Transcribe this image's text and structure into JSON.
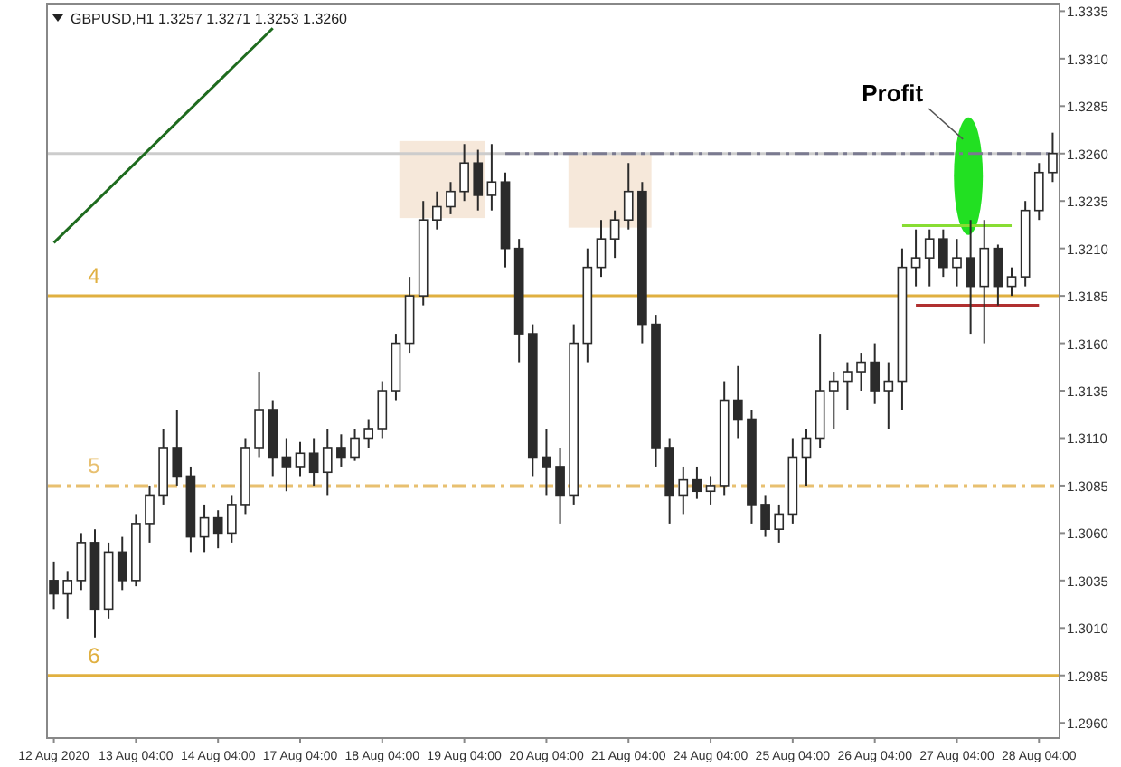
{
  "chart_data": {
    "type": "candlestick",
    "title": "GBPUSD,H1  1.3257 1.3271 1.3253 1.3260",
    "categories": [
      "12 Aug 2020",
      null,
      null,
      null,
      null,
      null,
      "13 Aug 04:00",
      null,
      null,
      null,
      null,
      null,
      "14 Aug 04:00",
      null,
      null,
      null,
      null,
      null,
      "17 Aug 04:00",
      null,
      null,
      null,
      null,
      null,
      "18 Aug 04:00",
      null,
      null,
      null,
      null,
      null,
      "19 Aug 04:00",
      null,
      null,
      null,
      null,
      null,
      "20 Aug 04:00",
      null,
      null,
      null,
      null,
      null,
      "21 Aug 04:00",
      null,
      null,
      null,
      null,
      null,
      "24 Aug 04:00",
      null,
      null,
      null,
      null,
      null,
      "25 Aug 04:00",
      null,
      null,
      null,
      null,
      null,
      "26 Aug 04:00",
      null,
      null,
      null,
      null,
      null,
      "27 Aug 04:00",
      null,
      null,
      null,
      null,
      null,
      "28 Aug 04:00",
      null
    ],
    "ylim": [
      1.2952,
      1.3339
    ],
    "yticks": [
      1.3335,
      {
        "value": 1.331,
        "label": "1.3310"
      },
      1.3285,
      {
        "value": 1.326,
        "label": "1.3260"
      },
      1.3235,
      {
        "value": 1.321,
        "label": "1.3210"
      },
      1.3185,
      {
        "value": 1.316,
        "label": "1.3160"
      },
      1.3135,
      {
        "value": 1.311,
        "label": "1.3110"
      },
      1.3085,
      {
        "value": 1.306,
        "label": "1.3060"
      },
      1.3035,
      {
        "value": 1.301,
        "label": "1.3010"
      },
      1.2985,
      {
        "value": 1.296,
        "label": "1.2960"
      }
    ],
    "grid": false,
    "annotations": [
      "Profit",
      "4",
      "5",
      "6"
    ],
    "ref_lines": [
      {
        "axis": "y",
        "value": 1.326,
        "color": "#cccccc"
      },
      {
        "axis": "y",
        "value": 1.3185,
        "color": "#e0b040"
      },
      {
        "axis": "y",
        "value": 1.3085,
        "color": "#e8c070",
        "line_style": "dashed"
      },
      {
        "axis": "y",
        "value": 1.2985,
        "color": "#e0b040"
      }
    ],
    "series": [
      {
        "type": "line",
        "color": "#1e6b1e",
        "values": [
          1.3213,
          null,
          null,
          null,
          null,
          null,
          null,
          null,
          null,
          null,
          null,
          null,
          null,
          null,
          null,
          null,
          1.3326,
          null,
          null,
          null,
          null,
          null,
          null,
          null,
          null,
          null,
          null,
          null,
          null,
          null,
          null,
          null,
          null,
          null,
          null,
          null,
          null,
          null,
          null,
          null,
          null,
          null,
          null,
          null,
          null,
          null,
          null,
          null,
          null,
          null,
          null,
          null,
          null,
          null,
          null,
          null,
          null,
          null,
          null,
          null,
          null,
          null,
          null,
          null,
          null,
          null,
          null,
          null,
          null,
          null,
          null,
          null,
          null,
          null
        ]
      },
      {
        "type": "line",
        "color": "#7a7a90",
        "line_style": "dashed",
        "values": [
          null,
          null,
          null,
          null,
          null,
          null,
          null,
          null,
          null,
          null,
          null,
          null,
          null,
          null,
          null,
          null,
          null,
          null,
          null,
          null,
          null,
          null,
          null,
          null,
          null,
          null,
          null,
          null,
          null,
          null,
          null,
          null,
          null,
          1.326,
          null,
          null,
          null,
          null,
          null,
          null,
          null,
          null,
          null,
          null,
          null,
          null,
          null,
          null,
          null,
          null,
          null,
          null,
          null,
          null,
          null,
          null,
          null,
          null,
          null,
          null,
          null,
          null,
          null,
          null,
          null,
          null,
          null,
          null,
          null,
          null,
          null,
          null,
          null,
          1.326
        ]
      },
      {
        "color": "#2b2b2b",
        "ohlc": [
          [
            1.3035,
            1.3045,
            1.302,
            1.3028
          ],
          [
            1.3028,
            1.304,
            1.3015,
            1.3035
          ],
          [
            1.3035,
            1.306,
            1.303,
            1.3055
          ],
          [
            1.3055,
            1.3062,
            1.3005,
            1.302
          ],
          [
            1.302,
            1.3055,
            1.3015,
            1.305
          ],
          [
            1.305,
            1.3058,
            1.303,
            1.3035
          ],
          [
            1.3035,
            1.307,
            1.3032,
            1.3065
          ],
          [
            1.3065,
            1.3085,
            1.3055,
            1.308
          ],
          [
            1.308,
            1.3115,
            1.3075,
            1.3105
          ],
          [
            1.3105,
            1.3125,
            1.3085,
            1.309
          ],
          [
            1.309,
            1.3095,
            1.305,
            1.3058
          ],
          [
            1.3058,
            1.3075,
            1.305,
            1.3068
          ],
          [
            1.3068,
            1.3072,
            1.3052,
            1.306
          ],
          [
            1.306,
            1.308,
            1.3055,
            1.3075
          ],
          [
            1.3075,
            1.311,
            1.307,
            1.3105
          ],
          [
            1.3105,
            1.3145,
            1.31,
            1.3125
          ],
          [
            1.3125,
            1.313,
            1.309,
            1.31
          ],
          [
            1.31,
            1.311,
            1.3082,
            1.3095
          ],
          [
            1.3095,
            1.3108,
            1.309,
            1.3102
          ],
          [
            1.3102,
            1.311,
            1.3085,
            1.3092
          ],
          [
            1.3092,
            1.3115,
            1.308,
            1.3105
          ],
          [
            1.3105,
            1.3112,
            1.3095,
            1.31
          ],
          [
            1.31,
            1.3115,
            1.3098,
            1.311
          ],
          [
            1.311,
            1.312,
            1.3105,
            1.3115
          ],
          [
            1.3115,
            1.314,
            1.311,
            1.3135
          ],
          [
            1.3135,
            1.3165,
            1.313,
            1.316
          ],
          [
            1.316,
            1.3195,
            1.3155,
            1.3185
          ],
          [
            1.3185,
            1.3235,
            1.318,
            1.3225
          ],
          [
            1.3225,
            1.324,
            1.322,
            1.3232
          ],
          [
            1.3232,
            1.3245,
            1.3228,
            1.324
          ],
          [
            1.324,
            1.3265,
            1.3235,
            1.3255
          ],
          [
            1.3255,
            1.3262,
            1.323,
            1.3238
          ],
          [
            1.3238,
            1.3265,
            1.323,
            1.3245
          ],
          [
            1.3245,
            1.325,
            1.32,
            1.321
          ],
          [
            1.321,
            1.3215,
            1.315,
            1.3165
          ],
          [
            1.3165,
            1.317,
            1.309,
            1.31
          ],
          [
            1.31,
            1.3115,
            1.308,
            1.3095
          ],
          [
            1.3095,
            1.3105,
            1.3065,
            1.308
          ],
          [
            1.308,
            1.317,
            1.3075,
            1.316
          ],
          [
            1.316,
            1.321,
            1.315,
            1.32
          ],
          [
            1.32,
            1.3225,
            1.3195,
            1.3215
          ],
          [
            1.3215,
            1.323,
            1.3205,
            1.3225
          ],
          [
            1.3225,
            1.3255,
            1.322,
            1.324
          ],
          [
            1.324,
            1.3245,
            1.316,
            1.317
          ],
          [
            1.317,
            1.3175,
            1.3095,
            1.3105
          ],
          [
            1.3105,
            1.311,
            1.3065,
            1.308
          ],
          [
            1.308,
            1.3095,
            1.307,
            1.3088
          ],
          [
            1.3088,
            1.3095,
            1.3078,
            1.3082
          ],
          [
            1.3082,
            1.309,
            1.3075,
            1.3085
          ],
          [
            1.3085,
            1.314,
            1.308,
            1.313
          ],
          [
            1.313,
            1.3148,
            1.311,
            1.312
          ],
          [
            1.312,
            1.3125,
            1.3065,
            1.3075
          ],
          [
            1.3075,
            1.308,
            1.3058,
            1.3062
          ],
          [
            1.3062,
            1.3075,
            1.3055,
            1.307
          ],
          [
            1.307,
            1.311,
            1.3065,
            1.31
          ],
          [
            1.31,
            1.3115,
            1.3085,
            1.311
          ],
          [
            1.311,
            1.3165,
            1.3105,
            1.3135
          ],
          [
            1.3135,
            1.3145,
            1.3115,
            1.314
          ],
          [
            1.314,
            1.315,
            1.3125,
            1.3145
          ],
          [
            1.3145,
            1.3155,
            1.3135,
            1.315
          ],
          [
            1.315,
            1.316,
            1.3128,
            1.3135
          ],
          [
            1.3135,
            1.315,
            1.3115,
            1.314
          ],
          [
            1.314,
            1.321,
            1.3125,
            1.32
          ],
          [
            1.32,
            1.322,
            1.319,
            1.3205
          ],
          [
            1.3205,
            1.322,
            1.319,
            1.3215
          ],
          [
            1.3215,
            1.322,
            1.3195,
            1.32
          ],
          [
            1.32,
            1.3215,
            1.319,
            1.3205
          ],
          [
            1.3205,
            1.3225,
            1.3165,
            1.319
          ],
          [
            1.319,
            1.3225,
            1.316,
            1.321
          ],
          [
            1.321,
            1.3212,
            1.318,
            1.319
          ],
          [
            1.319,
            1.32,
            1.3185,
            1.3195
          ],
          [
            1.3195,
            1.3235,
            1.319,
            1.323
          ],
          [
            1.323,
            1.3255,
            1.3225,
            1.325
          ],
          [
            1.325,
            1.3271,
            1.3245,
            1.326
          ]
        ]
      },
      {
        "type": "line",
        "color": "#88dd33",
        "values": [
          null,
          null,
          null,
          null,
          null,
          null,
          null,
          null,
          null,
          null,
          null,
          null,
          null,
          null,
          null,
          null,
          null,
          null,
          null,
          null,
          null,
          null,
          null,
          null,
          null,
          null,
          null,
          null,
          null,
          null,
          null,
          null,
          null,
          null,
          null,
          null,
          null,
          null,
          null,
          null,
          null,
          null,
          null,
          null,
          null,
          null,
          null,
          null,
          null,
          null,
          null,
          null,
          null,
          null,
          null,
          null,
          null,
          null,
          null,
          null,
          null,
          null,
          1.3222,
          null,
          null,
          null,
          null,
          null,
          null,
          null,
          1.3222,
          null,
          null,
          null
        ]
      },
      {
        "type": "line",
        "color": "#b03030",
        "values": [
          null,
          null,
          null,
          null,
          null,
          null,
          null,
          null,
          null,
          null,
          null,
          null,
          null,
          null,
          null,
          null,
          null,
          null,
          null,
          null,
          null,
          null,
          null,
          null,
          null,
          null,
          null,
          null,
          null,
          null,
          null,
          null,
          null,
          null,
          null,
          null,
          null,
          null,
          null,
          null,
          null,
          null,
          null,
          null,
          null,
          null,
          null,
          null,
          null,
          null,
          null,
          null,
          null,
          null,
          null,
          null,
          null,
          null,
          null,
          null,
          null,
          null,
          null,
          1.318,
          null,
          null,
          null,
          null,
          null,
          null,
          null,
          null,
          1.318,
          null
        ]
      }
    ]
  }
}
